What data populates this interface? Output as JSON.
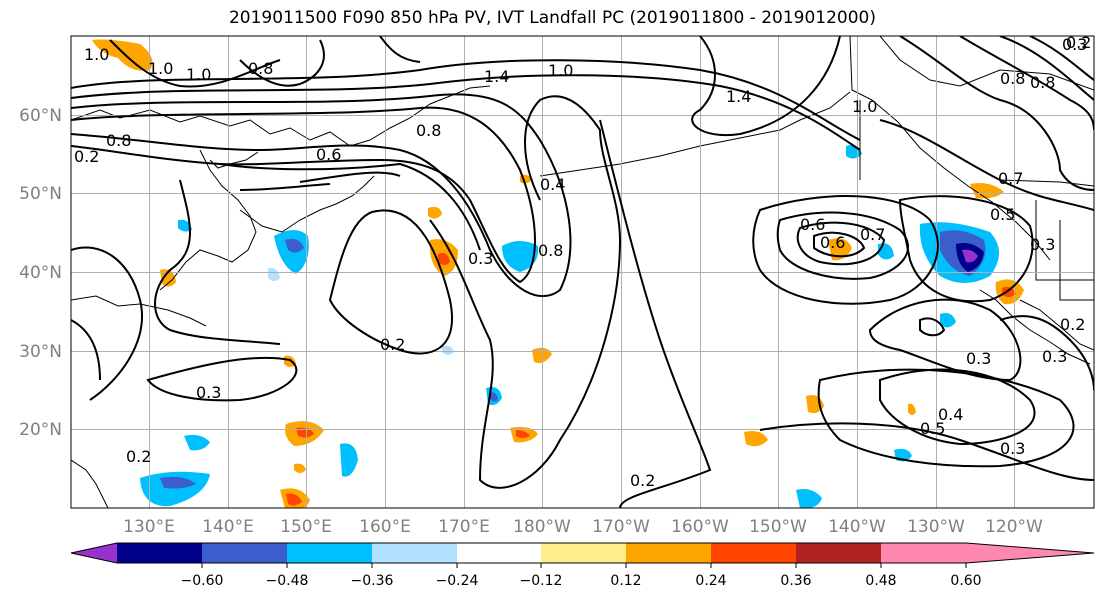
{
  "title": "2019011500 F090 850 hPa PV, IVT Landfall PC (2019011800 - 2019012000)",
  "lat_labels": [
    "60°N",
    "50°N",
    "40°N",
    "30°N",
    "20°N"
  ],
  "lon_labels": [
    "130°E",
    "140°E",
    "150°E",
    "160°E",
    "170°E",
    "180°W",
    "170°W",
    "160°W",
    "150°W",
    "140°W",
    "130°W",
    "120°W"
  ],
  "colorbar": {
    "colors": [
      "#9932CC",
      "#00008B",
      "#3A5FCD",
      "#00BFFF",
      "#B0E2FF",
      "#FFFFFF",
      "#FFEC8B",
      "#FFA500",
      "#FF4500",
      "#B22222",
      "#FF88B0"
    ],
    "tick_labels": [
      "−0.60",
      "−0.48",
      "−0.36",
      "−0.24",
      "−0.12",
      "0.12",
      "0.24",
      "0.36",
      "0.48",
      "0.60"
    ]
  },
  "contour_labels": [
    "1.0",
    "1.0",
    "1.0",
    "0.8",
    "1.4",
    "1.0",
    "1.4",
    "1.0",
    "0.6",
    "0.2",
    "0.8",
    "0.8",
    "0.6",
    "0.4",
    "0.3",
    "0.8",
    "0.6",
    "0.7",
    "0.8",
    "0.5",
    "0.3",
    "0.7",
    "0.2",
    "0.2",
    "0.3",
    "0.3",
    "0.2",
    "0.4",
    "0.5",
    "0.2",
    "0.3",
    "0.3",
    "0.8",
    "0.3",
    "0.2"
  ]
}
